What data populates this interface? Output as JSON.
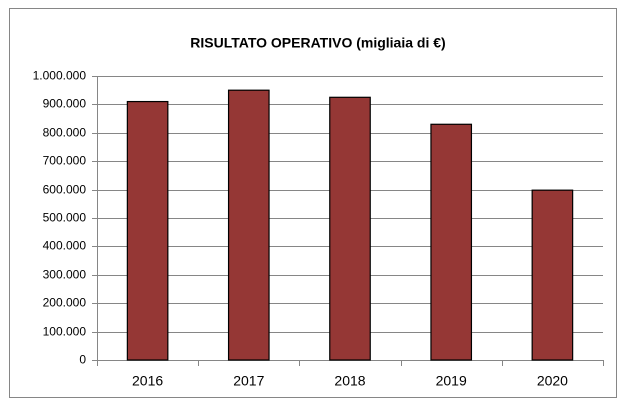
{
  "chart_data": {
    "type": "bar",
    "title": "RISULTATO OPERATIVO (migliaia di €)",
    "categories": [
      "2016",
      "2017",
      "2018",
      "2019",
      "2020"
    ],
    "values": [
      910000,
      950000,
      925000,
      830000,
      598000
    ],
    "color": "#953735",
    "ylim": [
      0,
      1000000
    ],
    "yticks": [
      0,
      {
        "value": 100000,
        "label": "100.000"
      },
      {
        "value": 200000,
        "label": "200.000"
      },
      {
        "value": 300000,
        "label": "300.000"
      },
      {
        "value": 400000,
        "label": "400.000"
      },
      {
        "value": 500000,
        "label": "500.000"
      },
      {
        "value": 600000,
        "label": "600.000"
      },
      {
        "value": 700000,
        "label": "700.000"
      },
      {
        "value": 800000,
        "label": "800.000"
      },
      {
        "value": 900000,
        "label": "900.000"
      },
      {
        "value": 1000000,
        "label": "1.000.000"
      }
    ],
    "grid": true
  }
}
